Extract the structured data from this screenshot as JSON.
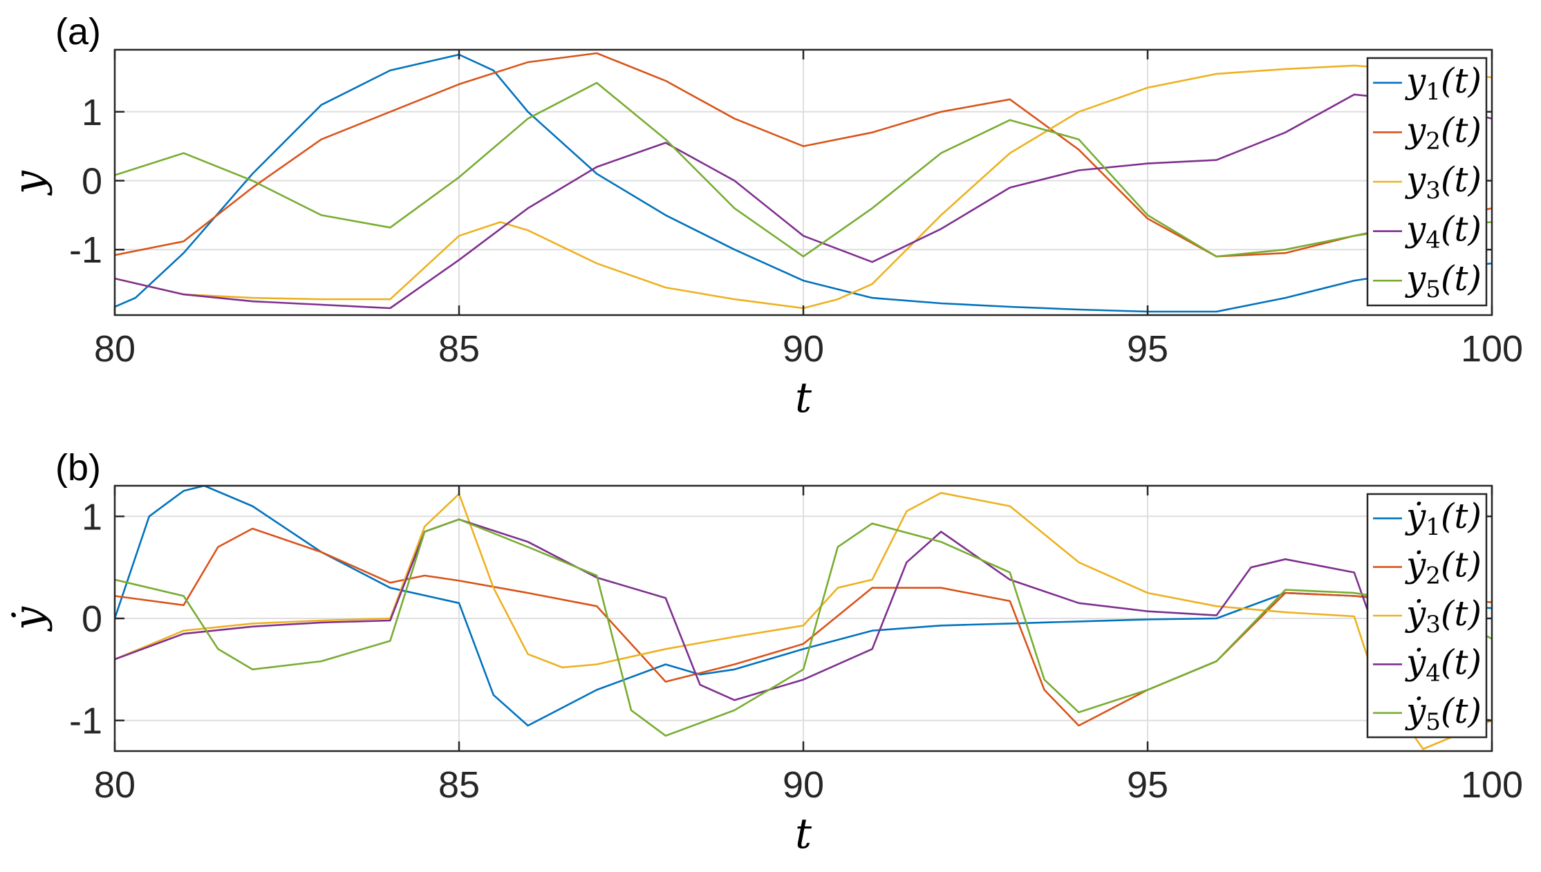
{
  "colors": {
    "s1": "#0072BD",
    "s2": "#D95319",
    "s3": "#EDB120",
    "s4": "#7E2F8E",
    "s5": "#77AC30"
  },
  "chart_data": [
    {
      "type": "line",
      "panel_label": "(a)",
      "xlabel": "t",
      "ylabel": "y",
      "xlim": [
        80,
        100
      ],
      "ylim": [
        -1.95,
        1.9
      ],
      "xticks": [
        80,
        85,
        90,
        95,
        100
      ],
      "yticks": [
        -1,
        0,
        1
      ],
      "grid": true,
      "legend_position": "right",
      "series": [
        {
          "name": "y1(t)",
          "x": [
            80,
            80.3,
            81,
            82,
            83,
            84,
            85,
            85.5,
            86,
            87,
            88,
            89,
            90,
            91,
            92,
            93,
            94,
            95,
            96,
            97,
            98,
            99,
            100
          ],
          "y": [
            -1.83,
            -1.7,
            -1.05,
            0.1,
            1.1,
            1.6,
            1.83,
            1.6,
            1.0,
            0.1,
            -0.5,
            -1.0,
            -1.45,
            -1.7,
            -1.78,
            -1.83,
            -1.87,
            -1.9,
            -1.9,
            -1.7,
            -1.45,
            -1.3,
            -1.2
          ]
        },
        {
          "name": "y2(t)",
          "x": [
            80,
            81,
            82,
            83,
            84,
            85,
            86,
            87,
            88,
            89,
            90,
            91,
            92,
            93,
            94,
            95,
            96,
            97,
            98,
            99,
            100
          ],
          "y": [
            -1.08,
            -0.88,
            -0.1,
            0.6,
            1.0,
            1.4,
            1.72,
            1.85,
            1.45,
            0.9,
            0.5,
            0.7,
            1.0,
            1.18,
            0.45,
            -0.55,
            -1.1,
            -1.05,
            -0.8,
            -0.6,
            -0.4
          ]
        },
        {
          "name": "y3(t)",
          "x": [
            80,
            81,
            82,
            83,
            84,
            85,
            85.6,
            86,
            87,
            88,
            89,
            90,
            90.5,
            91,
            92,
            93,
            94,
            95,
            96,
            97,
            98,
            99,
            100
          ],
          "y": [
            -1.42,
            -1.65,
            -1.7,
            -1.72,
            -1.72,
            -0.8,
            -0.6,
            -0.72,
            -1.2,
            -1.55,
            -1.72,
            -1.85,
            -1.72,
            -1.5,
            -0.5,
            0.4,
            1.0,
            1.35,
            1.55,
            1.62,
            1.67,
            1.6,
            1.5
          ]
        },
        {
          "name": "y4(t)",
          "x": [
            80,
            81,
            82,
            83,
            84,
            85,
            86,
            87,
            88,
            89,
            90,
            91,
            92,
            93,
            94,
            95,
            96,
            97,
            98,
            99,
            100
          ],
          "y": [
            -1.42,
            -1.65,
            -1.75,
            -1.8,
            -1.85,
            -1.15,
            -0.4,
            0.2,
            0.55,
            0.0,
            -0.8,
            -1.18,
            -0.7,
            -0.1,
            0.15,
            0.25,
            0.3,
            0.7,
            1.25,
            1.15,
            0.9
          ]
        },
        {
          "name": "y5(t)",
          "x": [
            80,
            81,
            82,
            83,
            84,
            85,
            86,
            87,
            88,
            89,
            90,
            91,
            92,
            93,
            94,
            95,
            96,
            97,
            98,
            99,
            100
          ],
          "y": [
            0.08,
            0.4,
            0.0,
            -0.5,
            -0.68,
            0.05,
            0.9,
            1.42,
            0.6,
            -0.4,
            -1.1,
            -0.4,
            0.4,
            0.88,
            0.6,
            -0.5,
            -1.1,
            -1.0,
            -0.8,
            -0.65,
            -0.6
          ]
        }
      ]
    },
    {
      "type": "line",
      "panel_label": "(b)",
      "xlabel": "t",
      "ylabel": "ẏ",
      "xlim": [
        80,
        100
      ],
      "ylim": [
        -1.3,
        1.3
      ],
      "xticks": [
        80,
        85,
        90,
        95,
        100
      ],
      "yticks": [
        -1,
        0,
        1
      ],
      "grid": true,
      "legend_position": "right",
      "series": [
        {
          "name": "ẏ1(t)",
          "x": [
            80,
            80.5,
            81,
            81.3,
            82,
            83,
            84,
            85,
            85.5,
            86,
            87,
            88,
            88.5,
            89,
            90,
            91,
            92,
            93,
            94,
            95,
            96,
            97,
            98,
            99,
            100
          ],
          "y": [
            0.0,
            1.0,
            1.25,
            1.3,
            1.1,
            0.65,
            0.3,
            0.15,
            -0.75,
            -1.05,
            -0.7,
            -0.45,
            -0.55,
            -0.5,
            -0.3,
            -0.12,
            -0.07,
            -0.05,
            -0.03,
            -0.01,
            0.0,
            0.25,
            0.22,
            0.15,
            0.1
          ]
        },
        {
          "name": "ẏ2(t)",
          "x": [
            80,
            81,
            81.5,
            82,
            83,
            84,
            84.5,
            85,
            86,
            87,
            88,
            89,
            90,
            91,
            92,
            93,
            93.5,
            94,
            95,
            96,
            97,
            98,
            99,
            100
          ],
          "y": [
            0.22,
            0.13,
            0.7,
            0.88,
            0.65,
            0.35,
            0.42,
            0.37,
            0.25,
            0.12,
            -0.62,
            -0.45,
            -0.25,
            0.3,
            0.3,
            0.17,
            -0.7,
            -1.05,
            -0.7,
            -0.42,
            0.25,
            0.22,
            0.18,
            0.16
          ]
        },
        {
          "name": "ẏ3(t)",
          "x": [
            80,
            81,
            82,
            83,
            84,
            84.5,
            85,
            85.5,
            86,
            86.5,
            87,
            88,
            89,
            90,
            90.5,
            91,
            91.5,
            92,
            93,
            94,
            95,
            96,
            97,
            98,
            98.3,
            99,
            100
          ],
          "y": [
            -0.4,
            -0.12,
            -0.05,
            -0.02,
            0.0,
            0.9,
            1.22,
            0.3,
            -0.35,
            -0.48,
            -0.45,
            -0.3,
            -0.18,
            -0.07,
            0.3,
            0.38,
            1.05,
            1.23,
            1.1,
            0.55,
            0.25,
            0.12,
            0.06,
            0.02,
            -0.6,
            -1.28,
            -1.0
          ]
        },
        {
          "name": "ẏ4(t)",
          "x": [
            80,
            81,
            82,
            83,
            84,
            84.5,
            85,
            86,
            87,
            88,
            88.5,
            89,
            90,
            91,
            91.5,
            92,
            93,
            94,
            95,
            96,
            96.5,
            97,
            98,
            98.5,
            99,
            100
          ],
          "y": [
            -0.4,
            -0.15,
            -0.08,
            -0.04,
            -0.02,
            0.85,
            0.97,
            0.75,
            0.4,
            0.2,
            -0.65,
            -0.8,
            -0.6,
            -0.3,
            0.55,
            0.85,
            0.38,
            0.15,
            0.07,
            0.03,
            0.5,
            0.58,
            0.45,
            -0.5,
            -0.9,
            -1.0
          ]
        },
        {
          "name": "ẏ5(t)",
          "x": [
            80,
            81,
            81.5,
            82,
            83,
            84,
            84.5,
            85,
            86,
            87,
            87.5,
            88,
            89,
            90,
            90.5,
            91,
            92,
            93,
            93.5,
            94,
            95,
            96,
            97,
            98,
            99,
            100
          ],
          "y": [
            0.38,
            0.22,
            -0.3,
            -0.5,
            -0.42,
            -0.22,
            0.85,
            0.97,
            0.7,
            0.42,
            -0.9,
            -1.15,
            -0.9,
            -0.5,
            0.7,
            0.93,
            0.75,
            0.45,
            -0.6,
            -0.92,
            -0.7,
            -0.42,
            0.28,
            0.25,
            0.15,
            -0.2
          ]
        }
      ]
    }
  ]
}
